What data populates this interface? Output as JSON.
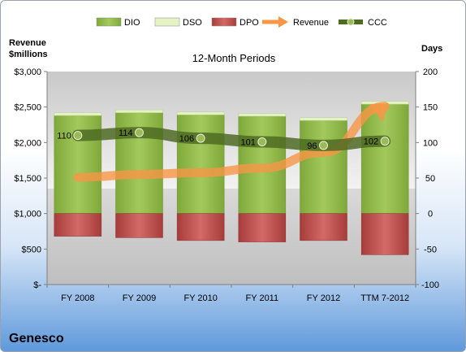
{
  "company": "Genesco",
  "chart_data": {
    "type": "bar",
    "title": "12-Month Periods",
    "categories": [
      "FY 2008",
      "FY 2009",
      "FY 2010",
      "FY 2011",
      "FY 2012",
      "TTM 7-2012"
    ],
    "left_axis": {
      "label_line1": "Revenue",
      "label_line2": "$millions",
      "range": [
        0,
        3000
      ],
      "ticks": [
        0,
        500,
        1000,
        1500,
        2000,
        2500,
        3000
      ],
      "tick_labels": [
        "$-",
        "$500",
        "$1,000",
        "$1,500",
        "$2,000",
        "$2,500",
        "$3,000"
      ]
    },
    "right_axis": {
      "label": "Days",
      "range": [
        -100,
        200
      ],
      "ticks": [
        -100,
        -50,
        0,
        50,
        100,
        150,
        200
      ],
      "tick_labels": [
        "-100",
        "-50",
        "0",
        "50",
        "100",
        "150",
        "200"
      ]
    },
    "series": [
      {
        "name": "DIO",
        "axis": "right",
        "kind": "stacked-bar-positive",
        "color": "#8db544",
        "values": [
          138,
          142,
          139,
          137,
          131,
          154
        ]
      },
      {
        "name": "DSO",
        "axis": "right",
        "kind": "stacked-bar-positive",
        "color": "#e4f2c5",
        "values": [
          4,
          4,
          4,
          4,
          4,
          4
        ]
      },
      {
        "name": "DPO",
        "axis": "right",
        "kind": "bar-negative",
        "color": "#c0504d",
        "values": [
          -32,
          -34,
          -38,
          -40,
          -38,
          -58
        ]
      },
      {
        "name": "Revenue",
        "axis": "left",
        "kind": "arrow-line",
        "color": "#f79646",
        "values": [
          1510,
          1550,
          1575,
          1640,
          1860,
          2510
        ]
      },
      {
        "name": "CCC",
        "axis": "right",
        "kind": "line-markers",
        "color": "#5b7d2a",
        "values": [
          110,
          114,
          106,
          101,
          96,
          102
        ],
        "data_labels": [
          "110",
          "114",
          "106",
          "101",
          "96",
          "102"
        ]
      }
    ],
    "legend": {
      "position": "top",
      "entries": [
        "DIO",
        "DSO",
        "DPO",
        "Revenue",
        "CCC"
      ]
    },
    "grid": false
  }
}
